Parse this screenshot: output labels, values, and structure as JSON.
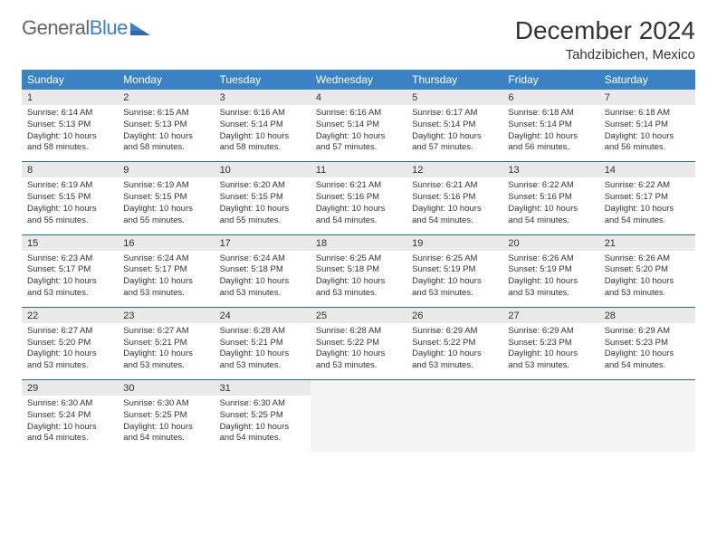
{
  "brand": {
    "part1": "General",
    "part2": "Blue"
  },
  "title": "December 2024",
  "location": "Tahdzibichen, Mexico",
  "headers": [
    "Sunday",
    "Monday",
    "Tuesday",
    "Wednesday",
    "Thursday",
    "Friday",
    "Saturday"
  ],
  "colors": {
    "header_bg": "#3b82c4",
    "rule": "#2a6aa8",
    "daynum_bg": "#e9e9e9"
  },
  "weeks": [
    [
      {
        "n": "1",
        "sr": "6:14 AM",
        "ss": "5:13 PM",
        "dl": "10 hours and 58 minutes."
      },
      {
        "n": "2",
        "sr": "6:15 AM",
        "ss": "5:13 PM",
        "dl": "10 hours and 58 minutes."
      },
      {
        "n": "3",
        "sr": "6:16 AM",
        "ss": "5:14 PM",
        "dl": "10 hours and 58 minutes."
      },
      {
        "n": "4",
        "sr": "6:16 AM",
        "ss": "5:14 PM",
        "dl": "10 hours and 57 minutes."
      },
      {
        "n": "5",
        "sr": "6:17 AM",
        "ss": "5:14 PM",
        "dl": "10 hours and 57 minutes."
      },
      {
        "n": "6",
        "sr": "6:18 AM",
        "ss": "5:14 PM",
        "dl": "10 hours and 56 minutes."
      },
      {
        "n": "7",
        "sr": "6:18 AM",
        "ss": "5:14 PM",
        "dl": "10 hours and 56 minutes."
      }
    ],
    [
      {
        "n": "8",
        "sr": "6:19 AM",
        "ss": "5:15 PM",
        "dl": "10 hours and 55 minutes."
      },
      {
        "n": "9",
        "sr": "6:19 AM",
        "ss": "5:15 PM",
        "dl": "10 hours and 55 minutes."
      },
      {
        "n": "10",
        "sr": "6:20 AM",
        "ss": "5:15 PM",
        "dl": "10 hours and 55 minutes."
      },
      {
        "n": "11",
        "sr": "6:21 AM",
        "ss": "5:16 PM",
        "dl": "10 hours and 54 minutes."
      },
      {
        "n": "12",
        "sr": "6:21 AM",
        "ss": "5:16 PM",
        "dl": "10 hours and 54 minutes."
      },
      {
        "n": "13",
        "sr": "6:22 AM",
        "ss": "5:16 PM",
        "dl": "10 hours and 54 minutes."
      },
      {
        "n": "14",
        "sr": "6:22 AM",
        "ss": "5:17 PM",
        "dl": "10 hours and 54 minutes."
      }
    ],
    [
      {
        "n": "15",
        "sr": "6:23 AM",
        "ss": "5:17 PM",
        "dl": "10 hours and 53 minutes."
      },
      {
        "n": "16",
        "sr": "6:24 AM",
        "ss": "5:17 PM",
        "dl": "10 hours and 53 minutes."
      },
      {
        "n": "17",
        "sr": "6:24 AM",
        "ss": "5:18 PM",
        "dl": "10 hours and 53 minutes."
      },
      {
        "n": "18",
        "sr": "6:25 AM",
        "ss": "5:18 PM",
        "dl": "10 hours and 53 minutes."
      },
      {
        "n": "19",
        "sr": "6:25 AM",
        "ss": "5:19 PM",
        "dl": "10 hours and 53 minutes."
      },
      {
        "n": "20",
        "sr": "6:26 AM",
        "ss": "5:19 PM",
        "dl": "10 hours and 53 minutes."
      },
      {
        "n": "21",
        "sr": "6:26 AM",
        "ss": "5:20 PM",
        "dl": "10 hours and 53 minutes."
      }
    ],
    [
      {
        "n": "22",
        "sr": "6:27 AM",
        "ss": "5:20 PM",
        "dl": "10 hours and 53 minutes."
      },
      {
        "n": "23",
        "sr": "6:27 AM",
        "ss": "5:21 PM",
        "dl": "10 hours and 53 minutes."
      },
      {
        "n": "24",
        "sr": "6:28 AM",
        "ss": "5:21 PM",
        "dl": "10 hours and 53 minutes."
      },
      {
        "n": "25",
        "sr": "6:28 AM",
        "ss": "5:22 PM",
        "dl": "10 hours and 53 minutes."
      },
      {
        "n": "26",
        "sr": "6:29 AM",
        "ss": "5:22 PM",
        "dl": "10 hours and 53 minutes."
      },
      {
        "n": "27",
        "sr": "6:29 AM",
        "ss": "5:23 PM",
        "dl": "10 hours and 53 minutes."
      },
      {
        "n": "28",
        "sr": "6:29 AM",
        "ss": "5:23 PM",
        "dl": "10 hours and 54 minutes."
      }
    ],
    [
      {
        "n": "29",
        "sr": "6:30 AM",
        "ss": "5:24 PM",
        "dl": "10 hours and 54 minutes."
      },
      {
        "n": "30",
        "sr": "6:30 AM",
        "ss": "5:25 PM",
        "dl": "10 hours and 54 minutes."
      },
      {
        "n": "31",
        "sr": "6:30 AM",
        "ss": "5:25 PM",
        "dl": "10 hours and 54 minutes."
      },
      null,
      null,
      null,
      null
    ]
  ],
  "labels": {
    "sunrise": "Sunrise: ",
    "sunset": "Sunset: ",
    "daylight": "Daylight: "
  }
}
